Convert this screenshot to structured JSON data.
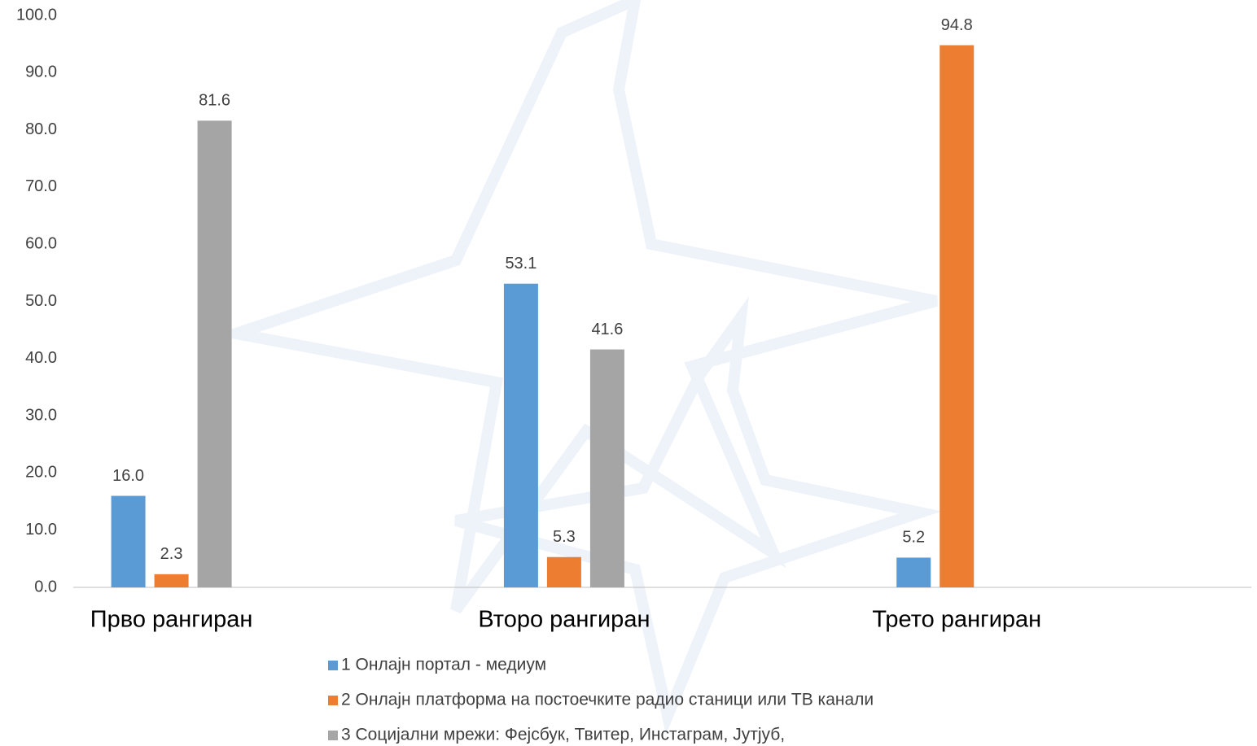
{
  "chart_data": {
    "type": "bar",
    "categories": [
      "Прво рангиран",
      "Второ рангиран",
      "Трето рангиран"
    ],
    "series": [
      {
        "name": "1 Онлајн портал - медиум",
        "color": "#5b9bd5",
        "values": [
          16.0,
          53.1,
          5.2
        ],
        "value_labels": [
          "16.0",
          "53.1",
          "5.2"
        ]
      },
      {
        "name": "2 Онлајн платформа на постоечките радио станици или ТВ канали",
        "color": "#ed7d31",
        "values": [
          2.3,
          5.3,
          94.8
        ],
        "value_labels": [
          "2.3",
          "5.3",
          "94.8"
        ]
      },
      {
        "name": "3 Социјални мрежи: Фејсбук, Твитер, Инстаграм, Јутјуб,",
        "color": "#a5a5a5",
        "values": [
          81.6,
          41.6,
          null
        ],
        "value_labels": [
          "81.6",
          "41.6",
          null
        ]
      }
    ],
    "ylim": [
      0,
      100
    ],
    "yticks": [
      {
        "value": 0,
        "label": "0.0"
      },
      {
        "value": 10,
        "label": "10.0"
      },
      {
        "value": 20,
        "label": "20.0"
      },
      {
        "value": 30,
        "label": "30.0"
      },
      {
        "value": 40,
        "label": "40.0"
      },
      {
        "value": 50,
        "label": "50.0"
      },
      {
        "value": 60,
        "label": "60.0"
      },
      {
        "value": 70,
        "label": "70.0"
      },
      {
        "value": 80,
        "label": "80.0"
      },
      {
        "value": 90,
        "label": "90.0"
      },
      {
        "value": 100,
        "label": "100.0"
      }
    ],
    "grid": false,
    "legend": "bottom"
  }
}
